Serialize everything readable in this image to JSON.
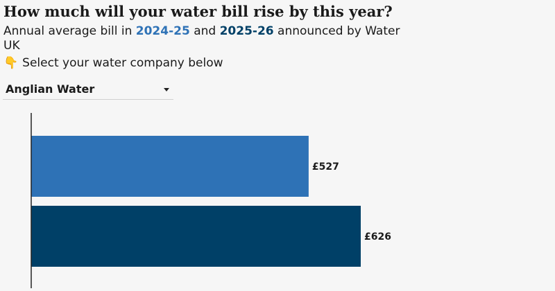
{
  "header": {
    "title": "How much will your water bill rise by this year?",
    "subtitle_prefix": "Annual average bill in ",
    "year1": "2024-25",
    "subtitle_mid": " and ",
    "year2": "2025-26",
    "subtitle_suffix": " announced by Water UK",
    "instruction_icon": "pointing-down-hand-icon",
    "instruction_emoji": "👇",
    "instruction": "Select your water company below"
  },
  "selector": {
    "selected": "Anglian Water",
    "icon": "caret-down-icon"
  },
  "colors": {
    "year1": "#2e72b6",
    "year2": "#004067"
  },
  "chart_data": {
    "type": "bar",
    "orientation": "horizontal",
    "categories": [
      "2024-25",
      "2025-26"
    ],
    "values": [
      527,
      626
    ],
    "labels": [
      "£527",
      "£626"
    ],
    "title": "",
    "xlabel": "",
    "ylabel": "",
    "grid": false
  }
}
